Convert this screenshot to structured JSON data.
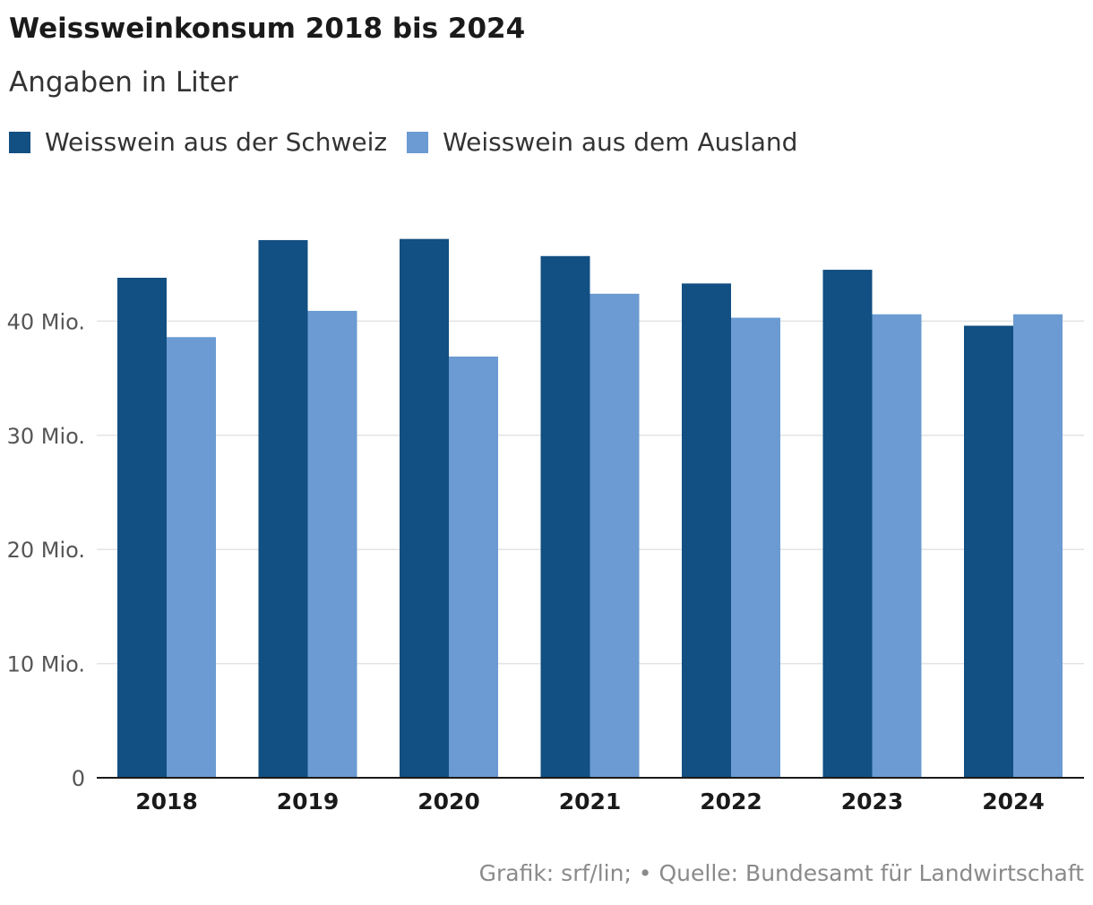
{
  "chart_data": {
    "type": "bar",
    "title": "Weissweinkonsum 2018 bis 2024",
    "subtitle": "Angaben in Liter",
    "categories": [
      "2018",
      "2019",
      "2020",
      "2021",
      "2022",
      "2023",
      "2024"
    ],
    "series": [
      {
        "name": "Weisswein aus der Schweiz",
        "color": "#124f82",
        "values": [
          43800000,
          47100000,
          47200000,
          45700000,
          43300000,
          44500000,
          39600000
        ]
      },
      {
        "name": "Weisswein aus dem Ausland",
        "color": "#6b9bd2",
        "values": [
          38600000,
          40900000,
          36900000,
          42400000,
          40300000,
          40600000,
          40600000
        ]
      }
    ],
    "yticks": [
      0,
      10000000,
      20000000,
      30000000,
      40000000
    ],
    "ytick_labels": [
      "0",
      "10 Mio.",
      "20 Mio.",
      "30 Mio.",
      "40 Mio."
    ],
    "ylim": [
      0,
      50000000
    ],
    "grid": true,
    "legend_position": "top-left"
  },
  "footer": "Grafik: srf/lin;  • Quelle: Bundesamt für Landwirtschaft"
}
